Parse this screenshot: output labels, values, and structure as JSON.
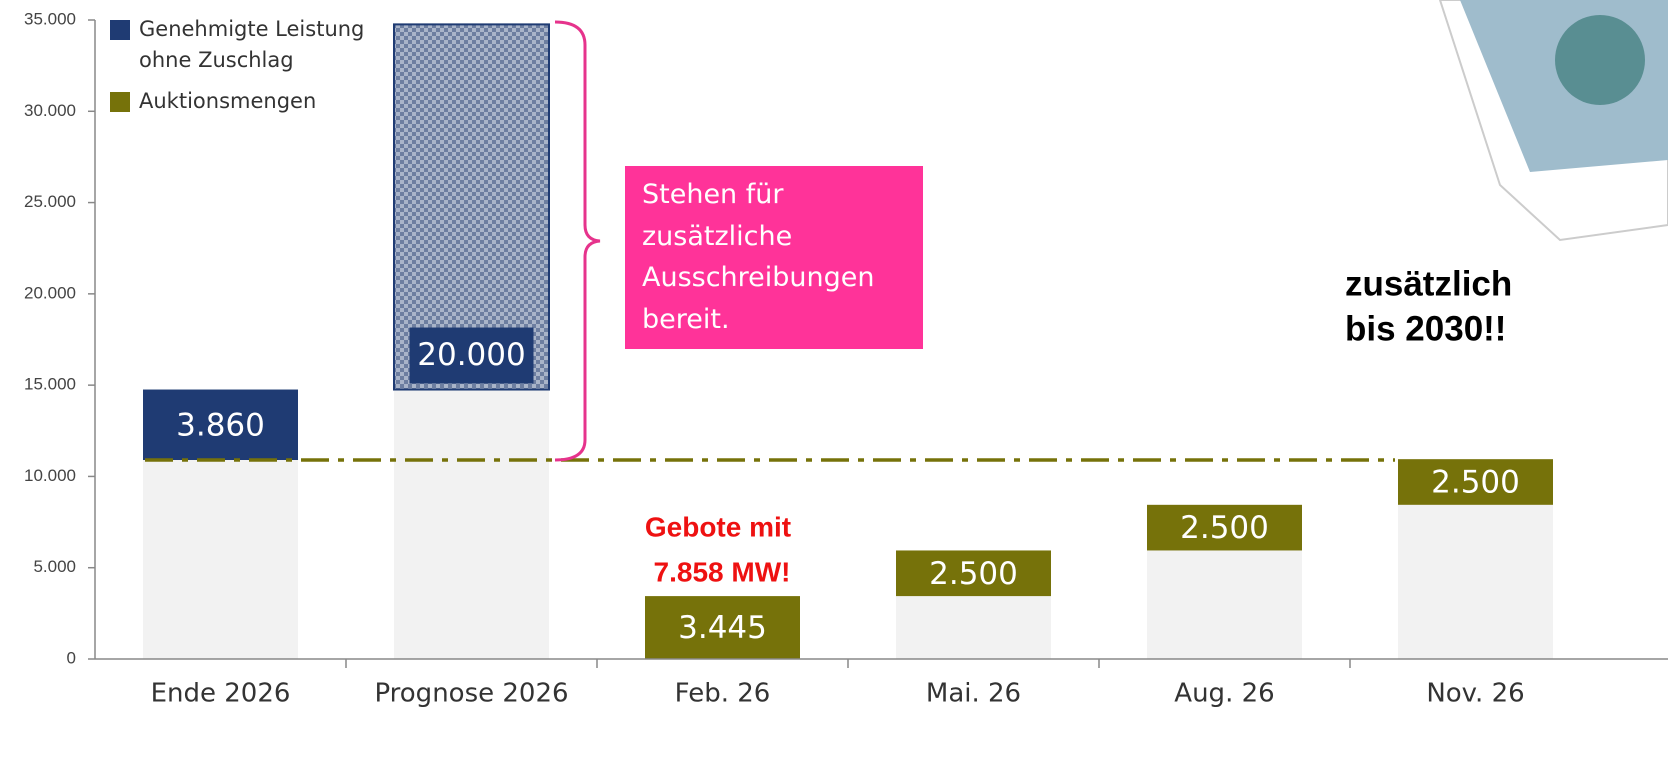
{
  "chart_data": {
    "type": "bar",
    "categories": [
      "Ende 2026",
      "Prognose 2026",
      "Feb. 26",
      "Mai. 26",
      "Aug. 26",
      "Nov. 26"
    ],
    "series": [
      {
        "color": "#f2f2f2",
        "values": [
          10900,
          14760,
          null,
          3445,
          5945,
          8445
        ]
      },
      {
        "name": "Genehmigte Leistung ohne Zuschlag",
        "color": "#1f3b73",
        "values": [
          3860,
          20000,
          null,
          null,
          null,
          null
        ],
        "value_labels": [
          "3.860",
          "20.000",
          null,
          null,
          null,
          null
        ],
        "patterned": [
          false,
          true,
          false,
          false,
          false,
          false
        ]
      },
      {
        "name": "Auktionsmengen",
        "color": "#76720a",
        "values": [
          null,
          null,
          3445,
          2500,
          2500,
          2500
        ],
        "value_labels": [
          null,
          null,
          "3.445",
          "2.500",
          "2.500",
          "2.500"
        ]
      }
    ],
    "reference_line": 10900,
    "ylim": [
      0,
      35000
    ],
    "yticks": [
      0,
      {
        "value": 5000,
        "label": "5.000"
      },
      {
        "value": 10000,
        "label": "10.000"
      },
      {
        "value": 15000,
        "label": "15.000"
      },
      {
        "value": 20000,
        "label": "20.000"
      },
      {
        "value": 25000,
        "label": "25.000"
      },
      {
        "value": 30000,
        "label": "30.000"
      },
      {
        "value": 35000,
        "label": "35.000"
      }
    ],
    "annotations": {
      "box": "Stehen für zusätzliche Ausschreibungen bereit.",
      "bids": [
        "Gebote mit",
        "7.858 MW!"
      ],
      "side": [
        "zusätzlich",
        "bis 2030!!"
      ]
    }
  }
}
